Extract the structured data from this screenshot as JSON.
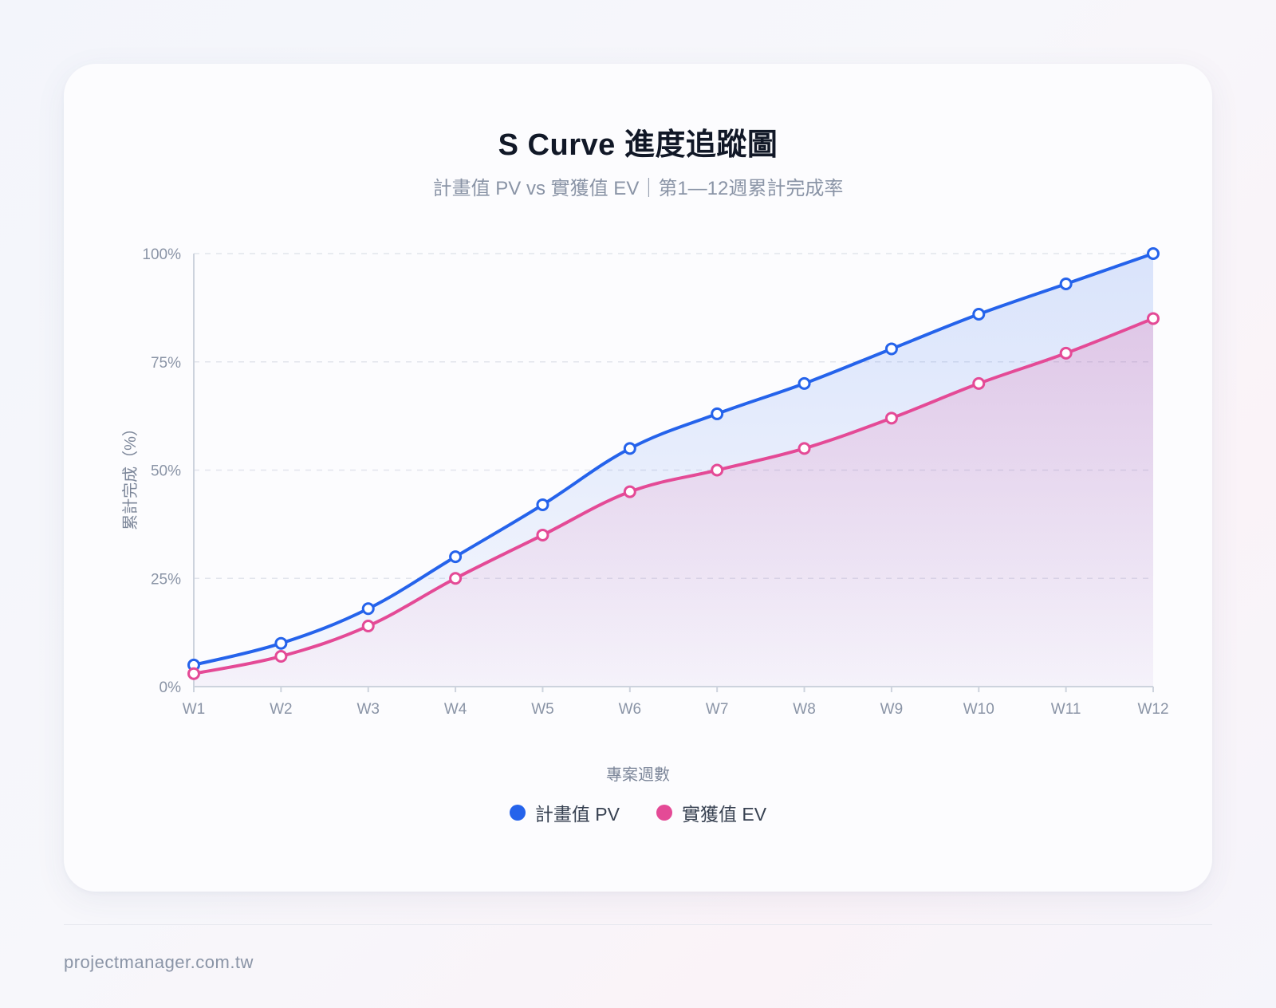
{
  "footer": {
    "site": "projectmanager.com.tw"
  },
  "colors": {
    "pv": "#2563eb",
    "ev": "#e44a96",
    "grid": "#e2e5ec",
    "axis": "#cdd3dd"
  },
  "chart_data": {
    "type": "line",
    "title": "S Curve 進度追蹤圖",
    "subtitle": "計畫值 PV vs 實獲值 EV｜第1—12週累計完成率",
    "xlabel": "專案週數",
    "ylabel": "累計完成（%）",
    "ylim": [
      0,
      100
    ],
    "yticks": [
      {
        "value": 0,
        "label": "0%"
      },
      {
        "value": 25,
        "label": "25%"
      },
      {
        "value": 50,
        "label": "50%"
      },
      {
        "value": 75,
        "label": "75%"
      },
      {
        "value": 100,
        "label": "100%"
      }
    ],
    "categories": [
      "W1",
      "W2",
      "W3",
      "W4",
      "W5",
      "W6",
      "W7",
      "W8",
      "W9",
      "W10",
      "W11",
      "W12"
    ],
    "series": [
      {
        "name": "計畫值 PV",
        "key": "pv",
        "values": [
          5,
          10,
          18,
          30,
          42,
          55,
          63,
          70,
          78,
          86,
          93,
          100
        ]
      },
      {
        "name": "實獲值 EV",
        "key": "ev",
        "values": [
          3,
          7,
          14,
          25,
          35,
          45,
          50,
          55,
          62,
          70,
          77,
          85
        ]
      }
    ],
    "grid": true,
    "legend": "bottom-center"
  }
}
